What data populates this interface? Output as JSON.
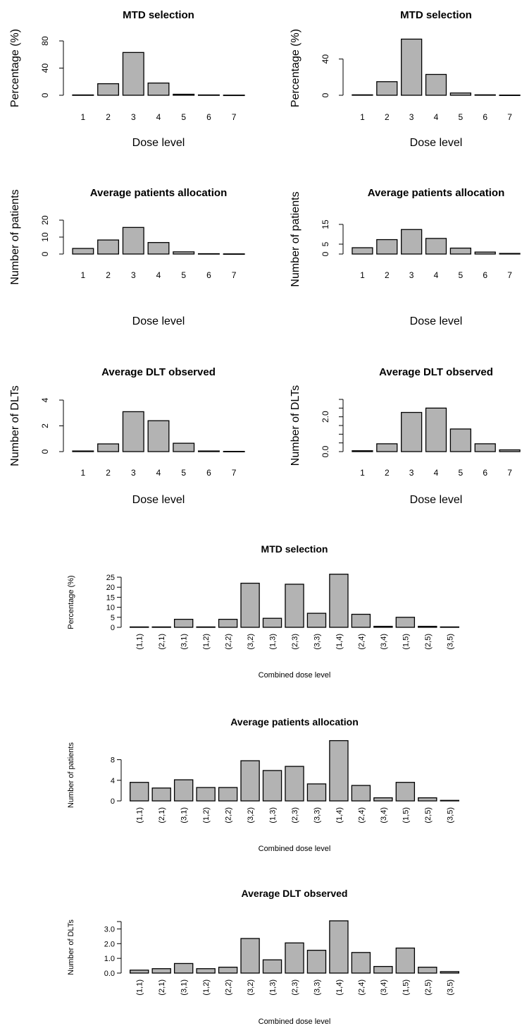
{
  "chart_data": [
    {
      "id": "mtd-left",
      "type": "bar",
      "title": "MTD selection",
      "xlabel": "Dose level",
      "ylabel": "Percentage (%)",
      "categories": [
        "1",
        "2",
        "3",
        "4",
        "5",
        "6",
        "7"
      ],
      "values": [
        0.5,
        17,
        63,
        18,
        1.5,
        0.5,
        0.2
      ],
      "ylim": [
        0,
        80
      ],
      "yticks": [
        0,
        40,
        80
      ],
      "ytick_labels": [
        "0",
        "40",
        "80"
      ]
    },
    {
      "id": "mtd-right",
      "type": "bar",
      "title": "MTD selection",
      "xlabel": "Dose level",
      "ylabel": "Percentage (%)",
      "categories": [
        "1",
        "2",
        "3",
        "4",
        "5",
        "6",
        "7"
      ],
      "values": [
        0.5,
        15,
        62,
        23,
        2.5,
        0.5,
        0.2
      ],
      "ylim": [
        0,
        60
      ],
      "yticks": [
        0,
        40
      ],
      "ytick_labels": [
        "0",
        "40"
      ]
    },
    {
      "id": "alloc-left",
      "type": "bar",
      "title": "Average patients allocation",
      "xlabel": "Dose level",
      "ylabel": "Number of patients",
      "categories": [
        "1",
        "2",
        "3",
        "4",
        "5",
        "6",
        "7"
      ],
      "values": [
        3.3,
        8.3,
        15.7,
        6.8,
        1.3,
        0.2,
        0.1
      ],
      "ylim": [
        0,
        20
      ],
      "yticks": [
        0,
        10,
        20
      ],
      "ytick_labels": [
        "0",
        "10",
        "20"
      ]
    },
    {
      "id": "alloc-right",
      "type": "bar",
      "title": "Average patients allocation",
      "xlabel": "Dose level",
      "ylabel": "Number of patients",
      "categories": [
        "1",
        "2",
        "3",
        "4",
        "5",
        "6",
        "7"
      ],
      "values": [
        3.2,
        7.3,
        12.4,
        7.9,
        3.0,
        1.0,
        0.3
      ],
      "ylim": [
        0,
        15
      ],
      "yticks": [
        0,
        5,
        15
      ],
      "ytick_labels": [
        "0",
        "5",
        "15"
      ]
    },
    {
      "id": "dlt-left",
      "type": "bar",
      "title": "Average DLT observed",
      "xlabel": "Dose level",
      "ylabel": "Number of DLTs",
      "categories": [
        "1",
        "2",
        "3",
        "4",
        "5",
        "6",
        "7"
      ],
      "values": [
        0.05,
        0.6,
        3.1,
        2.4,
        0.65,
        0.05,
        0.02
      ],
      "ylim": [
        0,
        4
      ],
      "yticks": [
        0,
        2,
        4
      ],
      "ytick_labels": [
        "0",
        "2",
        "4"
      ]
    },
    {
      "id": "dlt-right",
      "type": "bar",
      "title": "Average DLT observed",
      "xlabel": "Dose level",
      "ylabel": "Number of DLTs",
      "categories": [
        "1",
        "2",
        "3",
        "4",
        "5",
        "6",
        "7"
      ],
      "values": [
        0.05,
        0.45,
        2.25,
        2.5,
        1.3,
        0.45,
        0.1
      ],
      "ylim": [
        0,
        3.0
      ],
      "yticks": [
        0.0,
        0.5,
        1.0,
        1.5,
        2.0,
        2.5,
        3.0
      ],
      "ytick_labels": [
        "0.0",
        "",
        "",
        "",
        "2.0",
        "",
        ""
      ]
    },
    {
      "id": "combo-mtd",
      "type": "bar",
      "title": "MTD selection",
      "xlabel": "Combined dose level",
      "ylabel": "Percentage (%)",
      "categories": [
        "(1,1)",
        "(2,1)",
        "(3,1)",
        "(1,2)",
        "(2,2)",
        "(3,2)",
        "(1,3)",
        "(2,3)",
        "(3,3)",
        "(1,4)",
        "(2,4)",
        "(3,4)",
        "(1,5)",
        "(2,5)",
        "(3,5)"
      ],
      "values": [
        0.2,
        0.2,
        4,
        0.2,
        4,
        22,
        4.5,
        21.5,
        7,
        26.5,
        6.5,
        0.5,
        5,
        0.5,
        0.2
      ],
      "ylim": [
        0,
        25
      ],
      "yticks": [
        0,
        5,
        10,
        15,
        20,
        25
      ],
      "ytick_labels": [
        "0",
        "5",
        "10",
        "15",
        "20",
        "25"
      ]
    },
    {
      "id": "combo-alloc",
      "type": "bar",
      "title": "Average patients allocation",
      "xlabel": "Combined dose level",
      "ylabel": "Number of patients",
      "categories": [
        "(1,1)",
        "(2,1)",
        "(3,1)",
        "(1,2)",
        "(2,2)",
        "(3,2)",
        "(1,3)",
        "(2,3)",
        "(3,3)",
        "(1,4)",
        "(2,4)",
        "(3,4)",
        "(1,5)",
        "(2,5)",
        "(3,5)"
      ],
      "values": [
        3.6,
        2.5,
        4.1,
        2.6,
        2.6,
        7.8,
        5.9,
        6.7,
        3.3,
        11.7,
        3.0,
        0.6,
        3.6,
        0.6,
        0.1
      ],
      "ylim": [
        0,
        10
      ],
      "yticks": [
        0,
        4,
        8
      ],
      "ytick_labels": [
        "0",
        "4",
        "8"
      ]
    },
    {
      "id": "combo-dlt",
      "type": "bar",
      "title": "Average DLT observed",
      "xlabel": "Combined dose level",
      "ylabel": "Number of DLTs",
      "categories": [
        "(1,1)",
        "(2,1)",
        "(3,1)",
        "(1,2)",
        "(2,2)",
        "(3,2)",
        "(1,3)",
        "(2,3)",
        "(3,3)",
        "(1,4)",
        "(2,4)",
        "(3,4)",
        "(1,5)",
        "(2,5)",
        "(3,5)"
      ],
      "values": [
        0.2,
        0.3,
        0.65,
        0.3,
        0.4,
        2.35,
        0.9,
        2.05,
        1.55,
        3.55,
        1.4,
        0.45,
        1.7,
        0.4,
        0.1
      ],
      "ylim": [
        0,
        3.5
      ],
      "yticks": [
        0.0,
        1.0,
        2.0,
        3.0,
        3.5
      ],
      "ytick_labels": [
        "0.0",
        "1.0",
        "2.0",
        "3.0",
        ""
      ]
    }
  ]
}
